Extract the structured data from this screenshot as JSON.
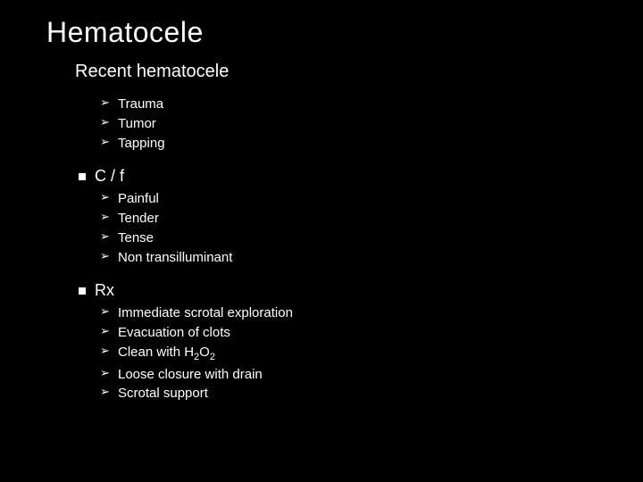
{
  "background_color": "#000000",
  "text_color": "#ffffff",
  "bullet_glyph": "➢",
  "title": "Hematocele",
  "subheading": "Recent hematocele",
  "causes": {
    "items": [
      "Trauma",
      "Tumor",
      "Tapping"
    ]
  },
  "sections": [
    {
      "heading": "C / f",
      "items": [
        "Painful",
        "Tender",
        "Tense",
        "Non transilluminant"
      ]
    },
    {
      "heading": "Rx",
      "items": [
        "Immediate scrotal exploration",
        "Evacuation of clots",
        "Clean with H2O2",
        "Loose closure with drain",
        "Scrotal support"
      ]
    }
  ]
}
